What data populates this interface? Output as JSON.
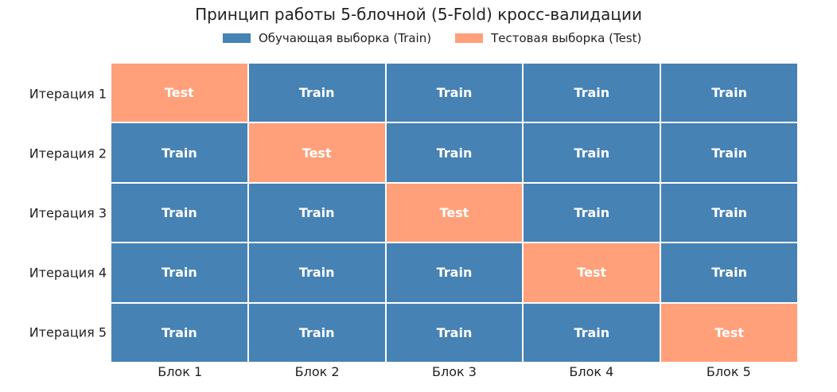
{
  "title": "Принцип работы 5-блочной (5-Fold) кросс-валидации",
  "legend": [
    {
      "label": "Обучающая выборка (Train)",
      "color": "#4682b4"
    },
    {
      "label": "Тестовая выборка (Test)",
      "color": "#ffa07a"
    }
  ],
  "colors": {
    "train": "#4682b4",
    "test": "#ffa07a"
  },
  "rows": [
    "Итерация 1",
    "Итерация 2",
    "Итерация 3",
    "Итерация 4",
    "Итерация 5"
  ],
  "columns": [
    "Блок 1",
    "Блок 2",
    "Блок 3",
    "Блок 4",
    "Блок 5"
  ],
  "cells": [
    [
      "Test",
      "Train",
      "Train",
      "Train",
      "Train"
    ],
    [
      "Train",
      "Test",
      "Train",
      "Train",
      "Train"
    ],
    [
      "Train",
      "Train",
      "Test",
      "Train",
      "Train"
    ],
    [
      "Train",
      "Train",
      "Train",
      "Test",
      "Train"
    ],
    [
      "Train",
      "Train",
      "Train",
      "Train",
      "Test"
    ]
  ]
}
